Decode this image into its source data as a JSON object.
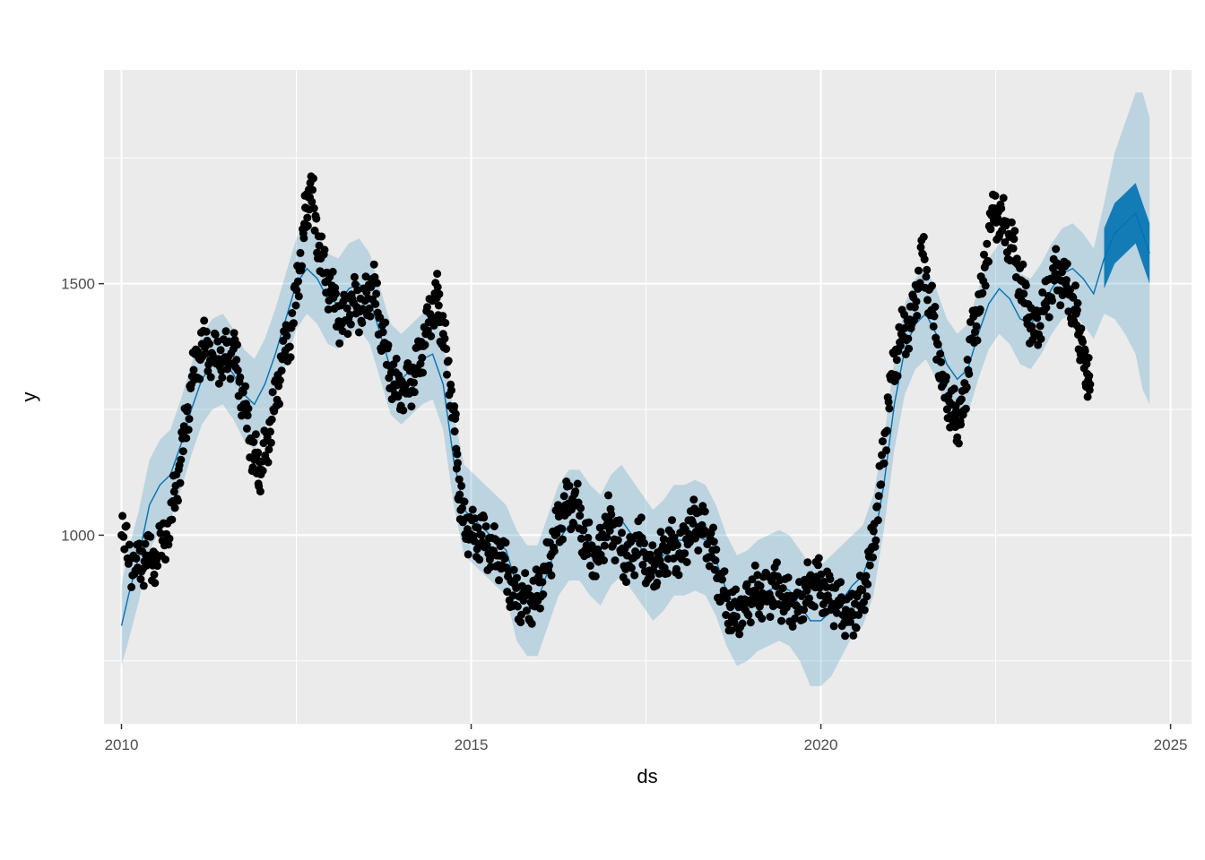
{
  "chart_data": {
    "type": "line",
    "title": "",
    "xlabel": "ds",
    "ylabel": "y",
    "xlim": [
      2009.75,
      2025.3
    ],
    "ylim": [
      625,
      1925
    ],
    "x_ticks": [
      2010,
      2015,
      2020,
      2025
    ],
    "x_tick_labels": [
      "2010",
      "2015",
      "2020",
      "2025"
    ],
    "y_ticks": [
      1000,
      1500
    ],
    "y_tick_labels": [
      "1000",
      "1500"
    ],
    "y_minor_ticks": [
      750,
      1250,
      1750
    ],
    "grid": true,
    "legend": "none",
    "colors": {
      "panel": "#ebebeb",
      "grid": "#ffffff",
      "points": "#000000",
      "forecast_line": "#0072b2",
      "interval": "#0072b2"
    },
    "observed": {
      "x": [
        2010.0,
        2010.2,
        2010.35,
        2010.5,
        2010.7,
        2010.85,
        2011.0,
        2011.15,
        2011.3,
        2011.45,
        2011.6,
        2011.75,
        2011.9,
        2012.0,
        2012.15,
        2012.3,
        2012.45,
        2012.6,
        2012.7,
        2012.85,
        2013.0,
        2013.15,
        2013.3,
        2013.45,
        2013.6,
        2013.75,
        2013.9,
        2014.05,
        2014.2,
        2014.35,
        2014.5,
        2014.6,
        2014.75,
        2014.85,
        2015.0,
        2015.15,
        2015.3,
        2015.45,
        2015.6,
        2015.75,
        2015.9,
        2016.05,
        2016.2,
        2016.35,
        2016.5,
        2016.65,
        2016.8,
        2016.95,
        2017.1,
        2017.25,
        2017.4,
        2017.55,
        2017.7,
        2017.85,
        2018.0,
        2018.15,
        2018.3,
        2018.45,
        2018.6,
        2018.75,
        2018.9,
        2019.05,
        2019.2,
        2019.35,
        2019.5,
        2019.65,
        2019.8,
        2019.95,
        2020.1,
        2020.25,
        2020.4,
        2020.55,
        2020.7,
        2020.85,
        2021.0,
        2021.15,
        2021.3,
        2021.45,
        2021.6,
        2021.75,
        2021.9,
        2022.0,
        2022.15,
        2022.3,
        2022.45,
        2022.6,
        2022.75,
        2022.9,
        2023.05,
        2023.2,
        2023.35,
        2023.5,
        2023.65,
        2023.75,
        2023.85
      ],
      "y": [
        1000,
        930,
        960,
        950,
        1030,
        1150,
        1300,
        1380,
        1360,
        1350,
        1370,
        1260,
        1150,
        1130,
        1230,
        1350,
        1420,
        1600,
        1700,
        1550,
        1480,
        1420,
        1470,
        1450,
        1500,
        1380,
        1300,
        1290,
        1320,
        1400,
        1480,
        1400,
        1250,
        1050,
        1000,
        1000,
        970,
        960,
        880,
        870,
        870,
        930,
        1000,
        1060,
        1060,
        980,
        950,
        1030,
        990,
        940,
        1000,
        930,
        950,
        980,
        960,
        1030,
        1020,
        970,
        880,
        840,
        860,
        890,
        880,
        900,
        870,
        860,
        890,
        910,
        880,
        870,
        840,
        860,
        940,
        1100,
        1310,
        1400,
        1420,
        1560,
        1440,
        1300,
        1240,
        1220,
        1390,
        1480,
        1650,
        1620,
        1570,
        1480,
        1400,
        1460,
        1520,
        1500,
        1440,
        1360,
        1300
      ]
    },
    "forecast": {
      "x": [
        2010.0,
        2010.1,
        2010.25,
        2010.4,
        2010.55,
        2010.7,
        2010.85,
        2011.0,
        2011.15,
        2011.3,
        2011.45,
        2011.6,
        2011.75,
        2011.9,
        2012.05,
        2012.2,
        2012.35,
        2012.5,
        2012.65,
        2012.8,
        2012.95,
        2013.1,
        2013.25,
        2013.4,
        2013.55,
        2013.7,
        2013.85,
        2014.0,
        2014.15,
        2014.3,
        2014.45,
        2014.6,
        2014.75,
        2014.9,
        2015.05,
        2015.2,
        2015.35,
        2015.5,
        2015.65,
        2015.8,
        2015.95,
        2016.1,
        2016.25,
        2016.4,
        2016.55,
        2016.7,
        2016.85,
        2017.0,
        2017.15,
        2017.3,
        2017.45,
        2017.6,
        2017.75,
        2017.9,
        2018.05,
        2018.2,
        2018.35,
        2018.5,
        2018.65,
        2018.8,
        2018.95,
        2019.1,
        2019.25,
        2019.4,
        2019.55,
        2019.7,
        2019.85,
        2020.0,
        2020.15,
        2020.3,
        2020.45,
        2020.6,
        2020.75,
        2020.9,
        2021.05,
        2021.2,
        2021.35,
        2021.5,
        2021.65,
        2021.8,
        2021.95,
        2022.1,
        2022.25,
        2022.4,
        2022.55,
        2022.7,
        2022.85,
        2023.0,
        2023.15,
        2023.3,
        2023.45,
        2023.6,
        2023.75,
        2023.9,
        2024.05,
        2024.2,
        2024.35,
        2024.5,
        2024.6,
        2024.7
      ],
      "yhat": [
        820,
        880,
        960,
        1060,
        1100,
        1120,
        1180,
        1250,
        1310,
        1340,
        1350,
        1320,
        1280,
        1260,
        1300,
        1360,
        1430,
        1500,
        1530,
        1510,
        1470,
        1460,
        1490,
        1500,
        1470,
        1400,
        1330,
        1310,
        1330,
        1350,
        1360,
        1300,
        1150,
        1050,
        1030,
        1010,
        990,
        970,
        900,
        870,
        870,
        930,
        990,
        1020,
        1020,
        990,
        970,
        1010,
        1030,
        1000,
        970,
        940,
        960,
        990,
        990,
        1000,
        990,
        950,
        890,
        850,
        860,
        880,
        890,
        900,
        890,
        860,
        830,
        830,
        850,
        870,
        900,
        920,
        980,
        1100,
        1260,
        1370,
        1420,
        1440,
        1400,
        1340,
        1310,
        1330,
        1400,
        1460,
        1490,
        1470,
        1430,
        1420,
        1450,
        1490,
        1520,
        1530,
        1510,
        1480,
        1550,
        1600,
        1620,
        1640,
        1600,
        1560
      ],
      "yhat_lower": [
        740,
        790,
        870,
        970,
        1010,
        1030,
        1090,
        1160,
        1220,
        1250,
        1260,
        1230,
        1190,
        1170,
        1210,
        1270,
        1340,
        1410,
        1440,
        1420,
        1380,
        1370,
        1400,
        1410,
        1380,
        1310,
        1240,
        1220,
        1240,
        1260,
        1270,
        1210,
        1060,
        960,
        940,
        920,
        900,
        880,
        790,
        760,
        760,
        820,
        880,
        910,
        910,
        880,
        860,
        900,
        920,
        890,
        860,
        830,
        850,
        880,
        880,
        890,
        880,
        840,
        780,
        740,
        750,
        770,
        780,
        790,
        780,
        750,
        700,
        700,
        720,
        760,
        800,
        820,
        880,
        1010,
        1170,
        1280,
        1330,
        1350,
        1310,
        1250,
        1220,
        1240,
        1310,
        1370,
        1400,
        1380,
        1340,
        1330,
        1360,
        1400,
        1430,
        1440,
        1420,
        1390,
        1440,
        1430,
        1400,
        1360,
        1290,
        1260
      ],
      "yhat_upper": [
        900,
        970,
        1050,
        1150,
        1190,
        1210,
        1270,
        1340,
        1400,
        1430,
        1440,
        1410,
        1370,
        1350,
        1390,
        1450,
        1520,
        1590,
        1620,
        1600,
        1560,
        1550,
        1580,
        1590,
        1560,
        1490,
        1420,
        1400,
        1420,
        1440,
        1450,
        1390,
        1240,
        1140,
        1120,
        1100,
        1080,
        1060,
        1010,
        980,
        980,
        1040,
        1100,
        1130,
        1130,
        1100,
        1080,
        1120,
        1140,
        1110,
        1080,
        1050,
        1070,
        1100,
        1100,
        1110,
        1100,
        1060,
        1000,
        960,
        970,
        990,
        1000,
        1010,
        1000,
        970,
        940,
        940,
        960,
        980,
        1000,
        1020,
        1080,
        1190,
        1350,
        1460,
        1510,
        1530,
        1490,
        1430,
        1400,
        1420,
        1490,
        1550,
        1580,
        1560,
        1520,
        1510,
        1540,
        1580,
        1610,
        1620,
        1600,
        1570,
        1660,
        1760,
        1820,
        1880,
        1880,
        1830
      ]
    }
  }
}
